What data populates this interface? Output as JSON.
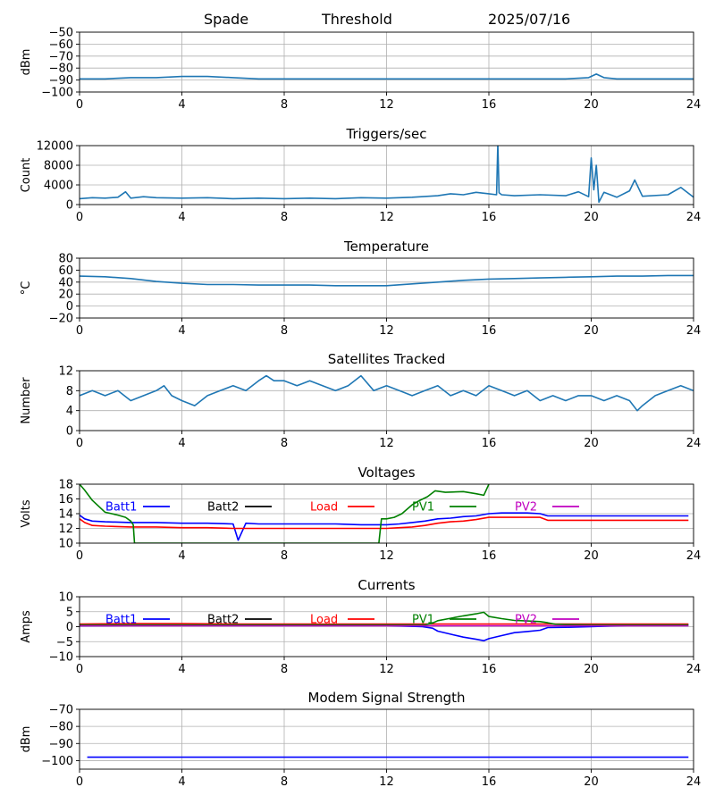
{
  "header": {
    "station": "Spade",
    "mode": "Threshold",
    "date": "2025/07/16"
  },
  "chart_data": [
    {
      "type": "line",
      "title": "",
      "ylabel": "dBm",
      "xlim": [
        0,
        24
      ],
      "ylim": [
        -100,
        -50
      ],
      "xticks": [
        0,
        4,
        8,
        12,
        16,
        20,
        24
      ],
      "yticks": [
        -100,
        -90,
        -80,
        -70,
        -60,
        -50
      ],
      "grid": true,
      "series": [
        {
          "color": "#1f77b4",
          "x": [
            0,
            1,
            2,
            3,
            4,
            5,
            6,
            7,
            8,
            9,
            10,
            11,
            12,
            13,
            14,
            15,
            16,
            17,
            18,
            19,
            19.9,
            20.2,
            20.5,
            21,
            22,
            23,
            24
          ],
          "y": [
            -89,
            -89,
            -88,
            -88,
            -87,
            -87,
            -88,
            -89,
            -89,
            -89,
            -89,
            -89,
            -89,
            -89,
            -89,
            -89,
            -89,
            -89,
            -89,
            -89,
            -88,
            -85,
            -88,
            -89,
            -89,
            -89,
            -89
          ]
        }
      ]
    },
    {
      "type": "line",
      "title": "Triggers/sec",
      "ylabel": "Count",
      "xlim": [
        0,
        24
      ],
      "ylim": [
        0,
        12000
      ],
      "xticks": [
        0,
        4,
        8,
        12,
        16,
        20,
        24
      ],
      "yticks": [
        0,
        4000,
        8000,
        12000
      ],
      "grid": true,
      "series": [
        {
          "color": "#1f77b4",
          "x": [
            0,
            0.5,
            1,
            1.5,
            1.8,
            2,
            2.5,
            3,
            4,
            5,
            6,
            7,
            8,
            9,
            10,
            11,
            12,
            13,
            14,
            14.5,
            15,
            15.5,
            16,
            16.3,
            16.35,
            16.4,
            16.5,
            17,
            18,
            19,
            19.5,
            19.9,
            20,
            20.1,
            20.2,
            20.3,
            20.5,
            21,
            21.5,
            21.7,
            22,
            23,
            23.5,
            24
          ],
          "y": [
            1200,
            1400,
            1300,
            1500,
            2600,
            1300,
            1600,
            1400,
            1300,
            1400,
            1200,
            1300,
            1200,
            1300,
            1200,
            1400,
            1300,
            1500,
            1800,
            2200,
            2000,
            2500,
            2200,
            2000,
            12500,
            2400,
            2000,
            1800,
            2000,
            1800,
            2600,
            1600,
            9500,
            3000,
            8000,
            500,
            2500,
            1500,
            2800,
            5000,
            1700,
            2000,
            3500,
            1500
          ]
        }
      ]
    },
    {
      "type": "line",
      "title": "Temperature",
      "ylabel": "°C",
      "xlim": [
        0,
        24
      ],
      "ylim": [
        -20,
        80
      ],
      "xticks": [
        0,
        4,
        8,
        12,
        16,
        20,
        24
      ],
      "yticks": [
        -20,
        0,
        20,
        40,
        60,
        80
      ],
      "grid": true,
      "series": [
        {
          "color": "#1f77b4",
          "x": [
            0,
            1,
            2,
            3,
            4,
            5,
            6,
            7,
            8,
            9,
            10,
            11,
            12,
            13,
            14,
            15,
            16,
            17,
            18,
            19,
            20,
            21,
            22,
            23,
            24
          ],
          "y": [
            50,
            49,
            46,
            41,
            38,
            36,
            36,
            35,
            35,
            35,
            34,
            34,
            34,
            37,
            40,
            43,
            45,
            46,
            47,
            48,
            49,
            50,
            50,
            51,
            51
          ]
        }
      ]
    },
    {
      "type": "line",
      "title": "Satellites Tracked",
      "ylabel": "Number",
      "xlim": [
        0,
        24
      ],
      "ylim": [
        0,
        12
      ],
      "xticks": [
        0,
        4,
        8,
        12,
        16,
        20,
        24
      ],
      "yticks": [
        0,
        4,
        8,
        12
      ],
      "grid": true,
      "series": [
        {
          "color": "#1f77b4",
          "x": [
            0,
            0.5,
            1,
            1.5,
            2,
            2.5,
            3,
            3.3,
            3.6,
            4,
            4.5,
            5,
            5.5,
            6,
            6.5,
            7,
            7.3,
            7.6,
            8,
            8.5,
            9,
            9.5,
            10,
            10.5,
            11,
            11.5,
            12,
            12.5,
            13,
            13.5,
            14,
            14.5,
            15,
            15.5,
            16,
            16.5,
            17,
            17.5,
            18,
            18.5,
            19,
            19.5,
            20,
            20.5,
            21,
            21.5,
            21.8,
            22,
            22.5,
            23,
            23.5,
            24
          ],
          "y": [
            7,
            8,
            7,
            8,
            6,
            7,
            8,
            9,
            7,
            6,
            5,
            7,
            8,
            9,
            8,
            10,
            11,
            10,
            10,
            9,
            10,
            9,
            8,
            9,
            11,
            8,
            9,
            8,
            7,
            8,
            9,
            7,
            8,
            7,
            9,
            8,
            7,
            8,
            6,
            7,
            6,
            7,
            7,
            6,
            7,
            6,
            4,
            5,
            7,
            8,
            9,
            8
          ]
        }
      ]
    },
    {
      "type": "line",
      "title": "Voltages",
      "ylabel": "Volts",
      "xlim": [
        0,
        24
      ],
      "ylim": [
        10,
        18
      ],
      "xticks": [
        0,
        4,
        8,
        12,
        16,
        20,
        24
      ],
      "yticks": [
        10,
        12,
        14,
        16,
        18
      ],
      "grid": true,
      "legend": "top, single row",
      "series": [
        {
          "name": "Batt1",
          "color": "#0000ff",
          "x": [
            0,
            0.2,
            0.5,
            1,
            2,
            3,
            4,
            5,
            6,
            6.2,
            6.5,
            7,
            8,
            9,
            10,
            11,
            12,
            12.5,
            13,
            13.5,
            14,
            14.5,
            15,
            15.5,
            16,
            16.5,
            17,
            17.5,
            18,
            18.3,
            19,
            20,
            21,
            22,
            23,
            23.8
          ],
          "y": [
            13.8,
            13.3,
            13.0,
            12.9,
            12.8,
            12.8,
            12.7,
            12.7,
            12.6,
            10.4,
            12.7,
            12.6,
            12.6,
            12.6,
            12.6,
            12.5,
            12.5,
            12.6,
            12.8,
            13.0,
            13.3,
            13.4,
            13.6,
            13.7,
            14.0,
            14.1,
            14.1,
            14.1,
            14.0,
            13.7,
            13.7,
            13.7,
            13.7,
            13.7,
            13.7,
            13.7
          ]
        },
        {
          "name": "Batt2",
          "color": "#000000",
          "x": [],
          "y": []
        },
        {
          "name": "Load",
          "color": "#ff0000",
          "x": [
            0,
            0.2,
            0.5,
            1,
            2,
            3,
            4,
            5,
            6,
            7,
            8,
            9,
            10,
            11,
            12,
            12.5,
            13,
            13.5,
            14,
            14.5,
            15,
            15.5,
            16,
            16.5,
            17,
            17.5,
            18,
            18.3,
            19,
            20,
            21,
            22,
            23,
            23.8
          ],
          "y": [
            13.3,
            12.8,
            12.4,
            12.3,
            12.2,
            12.2,
            12.1,
            12.1,
            12.0,
            12.0,
            12.0,
            12.0,
            12.0,
            12.0,
            12.0,
            12.1,
            12.2,
            12.4,
            12.7,
            12.9,
            13.0,
            13.2,
            13.5,
            13.5,
            13.5,
            13.5,
            13.5,
            13.1,
            13.1,
            13.1,
            13.1,
            13.1,
            13.1,
            13.1
          ]
        },
        {
          "name": "PV1",
          "color": "#008000",
          "x": [
            0,
            0.2,
            0.5,
            1,
            1.5,
            1.8,
            2,
            2.1,
            2.15,
            11.7,
            11.8,
            12,
            12.3,
            12.6,
            13,
            13.3,
            13.6,
            13.9,
            14.3,
            15,
            15.5,
            15.8,
            16
          ],
          "y": [
            18,
            17.2,
            15.8,
            14.2,
            13.8,
            13.5,
            13.0,
            12.5,
            10.0,
            10.0,
            13.3,
            13.3,
            13.5,
            14.0,
            15.2,
            15.8,
            16.3,
            17.1,
            16.9,
            17.0,
            16.7,
            16.5,
            18
          ]
        },
        {
          "name": "PV2",
          "color": "#c000c0",
          "x": [],
          "y": []
        }
      ]
    },
    {
      "type": "line",
      "title": "Currents",
      "ylabel": "Amps",
      "xlim": [
        0,
        24
      ],
      "ylim": [
        -10,
        10
      ],
      "xticks": [
        0,
        4,
        8,
        12,
        16,
        20,
        24
      ],
      "yticks": [
        -10,
        -5,
        0,
        5,
        10
      ],
      "grid": true,
      "legend": "top, single row",
      "series": [
        {
          "name": "Batt1",
          "color": "#0000ff",
          "x": [
            0,
            2,
            4,
            6,
            8,
            10,
            12,
            13.4,
            13.8,
            14,
            14.5,
            15,
            15.5,
            15.8,
            16,
            16.5,
            17,
            17.5,
            18,
            18.3,
            19,
            20,
            21,
            22,
            23,
            23.8
          ],
          "y": [
            0.3,
            0.4,
            0.4,
            0.5,
            0.5,
            0.4,
            0.4,
            0.0,
            -0.5,
            -1.5,
            -2.5,
            -3.5,
            -4.2,
            -4.7,
            -4.0,
            -3.0,
            -2.0,
            -1.6,
            -1.2,
            -0.3,
            -0.2,
            0.0,
            0.3,
            0.5,
            0.6,
            0.5
          ]
        },
        {
          "name": "Batt2",
          "color": "#000000",
          "x": [],
          "y": []
        },
        {
          "name": "Load",
          "color": "#ff0000",
          "x": [
            0,
            2,
            4,
            6,
            8,
            10,
            12,
            14,
            16,
            18,
            20,
            22,
            23.8
          ],
          "y": [
            0.9,
            1.0,
            1.0,
            0.9,
            0.9,
            0.9,
            0.9,
            0.9,
            0.9,
            0.9,
            0.9,
            0.9,
            0.9
          ]
        },
        {
          "name": "PV1",
          "color": "#008000",
          "x": [
            0,
            2,
            4,
            6,
            8,
            10,
            12,
            13.5,
            13.8,
            14,
            14.5,
            15,
            15.5,
            15.8,
            16,
            16.5,
            17,
            17.5,
            18,
            18.3,
            18.6,
            19,
            20,
            21,
            22,
            23,
            23.8
          ],
          "y": [
            0.6,
            0.6,
            0.6,
            0.6,
            0.6,
            0.6,
            0.6,
            0.6,
            1.2,
            2.0,
            2.8,
            3.6,
            4.3,
            4.8,
            3.4,
            2.7,
            2.1,
            1.9,
            1.7,
            1.3,
            0.8,
            0.7,
            0.6,
            0.6,
            0.6,
            0.6,
            0.6
          ]
        },
        {
          "name": "PV2",
          "color": "#c000c0",
          "x": [
            0,
            4,
            8,
            12,
            16,
            20,
            23.8
          ],
          "y": [
            0.3,
            0.3,
            0.3,
            0.3,
            0.3,
            0.3,
            0.3
          ]
        }
      ]
    },
    {
      "type": "line",
      "title": "Modem Signal Strength",
      "ylabel": "dBm",
      "xlim": [
        0,
        24
      ],
      "ylim": [
        -105,
        -70
      ],
      "xticks": [
        0,
        4,
        8,
        12,
        16,
        20,
        24
      ],
      "yticks": [
        -100,
        -90,
        -80,
        -70
      ],
      "grid": true,
      "series": [
        {
          "color": "#0000ff",
          "x": [
            0.3,
            23.8
          ],
          "y": [
            -98,
            -98
          ]
        }
      ]
    }
  ]
}
